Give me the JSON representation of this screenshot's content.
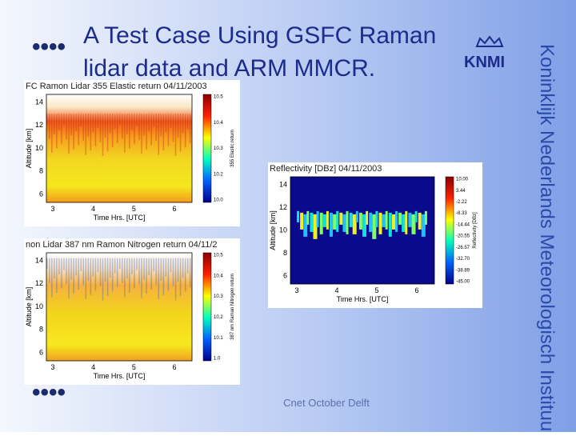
{
  "header": {
    "title_line1": "A Test Case Using GSFC Raman",
    "title_line2": "lidar data and ARM MMCR.",
    "logo": "KNMI"
  },
  "sidebar": {
    "institute": "Koninklijk Nederlands Meteorologisch Instituut"
  },
  "footer": {
    "text": "Cnet October Delft"
  },
  "panels": [
    {
      "title": "FC Ramon Lidar 355 Elastic return 04/11/2003",
      "y_label": "Altitude [km]",
      "x_label": "Time Hrs. [UTC]",
      "y_ticks": [
        "14",
        "12",
        "10",
        "8",
        "6"
      ],
      "x_ticks": [
        "3",
        "4",
        "5",
        "6"
      ],
      "colorbar_ticks": [
        "10.5",
        "10.4",
        "10.3",
        "10.2",
        "10.0"
      ],
      "colorbar_label": "355 Elastic return"
    },
    {
      "title": "non Lidar 387 nm Ramon Nitrogen return 04/11/2",
      "y_label": "Altitude [km]",
      "x_label": "Time Hrs. [UTC]",
      "y_ticks": [
        "14",
        "12",
        "10",
        "8",
        "6"
      ],
      "x_ticks": [
        "3",
        "4",
        "5",
        "6"
      ],
      "colorbar_ticks": [
        "10.5",
        "10.4",
        "10.3",
        "10.2",
        "10.1",
        "1.0"
      ],
      "colorbar_label": "387 nm Raman Nitrogen return"
    },
    {
      "title": "Reflectivity [DBz] 04/11/2003",
      "y_label": "Altitude [km]",
      "x_label": "Time Hrs. [UTC]",
      "y_ticks": [
        "14",
        "12",
        "10",
        "8",
        "6"
      ],
      "x_ticks": [
        "3",
        "4",
        "5",
        "6"
      ],
      "colorbar_ticks": [
        "10.00",
        "3.44",
        "-2.22",
        "-8.33",
        "-14.44",
        "-20.55",
        "-26.57",
        "-32.70",
        "-38.89",
        "-45.00"
      ],
      "colorbar_label": "Reflectivity [DBz]"
    }
  ]
}
